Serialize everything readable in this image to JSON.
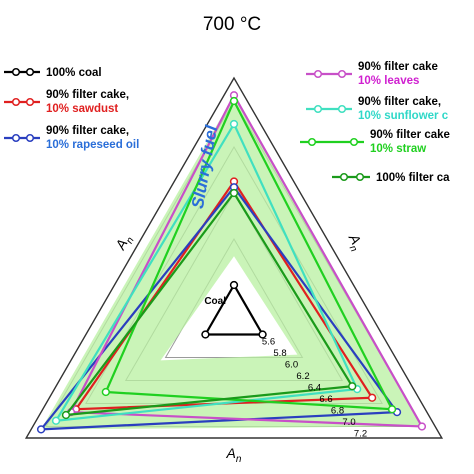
{
  "chart_data": {
    "type": "radar",
    "title": "700 °C",
    "axes": [
      "A_n",
      "A_n",
      "A_n"
    ],
    "rmin": 5.4,
    "rmax": 7.4,
    "ticks": [
      5.6,
      5.8,
      6.0,
      6.2,
      6.4,
      6.6,
      6.8,
      7.0,
      7.2
    ],
    "tick_labels": [
      "5.6",
      "5.8",
      "6.0",
      "6.2",
      "6.4",
      "6.6",
      "6.8",
      "7.0",
      "7.2"
    ],
    "grid": true,
    "coal_label": "Coal",
    "annotation": "Slurry fuel",
    "series": [
      {
        "line1": "100% coal",
        "line2": "",
        "color": "#000000",
        "color2": "#000000",
        "values": [
          5.6,
          5.6,
          5.6
        ]
      },
      {
        "line1": "90%  filter  cake,",
        "line2": "10% sawdust",
        "color": "#e02020",
        "color2": "#e02020",
        "values": [
          6.5,
          6.9,
          6.7
        ]
      },
      {
        "line1": "90%  filter  cake,",
        "line2": "10% rapeseed oil",
        "color": "#2a3fbf",
        "color2": "#2a6ed8",
        "values": [
          6.45,
          7.25,
          6.95
        ]
      },
      {
        "line1": "90%  filter  cake",
        "line2": "10% leaves",
        "color": "#c850c8",
        "color2": "#d020d0",
        "values": [
          7.25,
          6.95,
          7.2
        ]
      },
      {
        "line1": "90% filter cake,",
        "line2": "10% sunflower c",
        "color": "#40e0c0",
        "color2": "#30d8c8",
        "values": [
          7.0,
          7.1,
          6.55
        ]
      },
      {
        "line1": "90% filter cake",
        "line2": "10% straw",
        "color": "#20d020",
        "color2": "#20d020",
        "values": [
          7.2,
          6.6,
          6.9
        ]
      },
      {
        "line1": "100% filter ca",
        "line2": "",
        "color": "#1a9a1a",
        "color2": "#1a9a1a",
        "values": [
          6.4,
          7.0,
          6.5
        ]
      }
    ],
    "band_color": "#b8f0a0"
  }
}
